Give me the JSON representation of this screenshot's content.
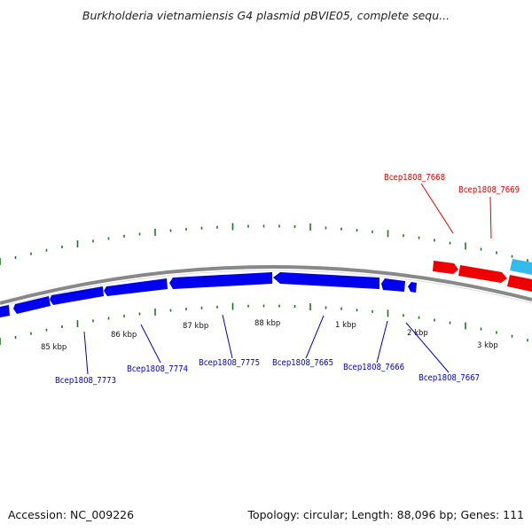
{
  "title": "Burkholderia vietnamiensis G4 plasmid pBVIE05, complete sequ...",
  "footer": {
    "accession": "Accession: NC_009226",
    "summary": "Topology: circular; Length: 88,096 bp; Genes: 111"
  },
  "colors": {
    "forward_gene": "#ee0000",
    "reverse_gene": "#0000ee",
    "other_gene": "#33bbee",
    "backbone": "#888888",
    "tick": "#1a7a1a",
    "forward_label": "#dd0000",
    "reverse_label": "#0000bb"
  },
  "kbp_labels": [
    "85 kbp",
    "86 kbp",
    "87 kbp",
    "88 kbp",
    "1 kbp",
    "2 kbp",
    "3 kbp"
  ],
  "gene_labels": {
    "top": [
      "Bcep1808_7668",
      "Bcep1808_7669"
    ],
    "bottom": [
      "Bcep1808_7773",
      "Bcep1808_7774",
      "Bcep1808_7775",
      "Bcep1808_7665",
      "Bcep1808_7666",
      "Bcep1808_7667"
    ]
  }
}
